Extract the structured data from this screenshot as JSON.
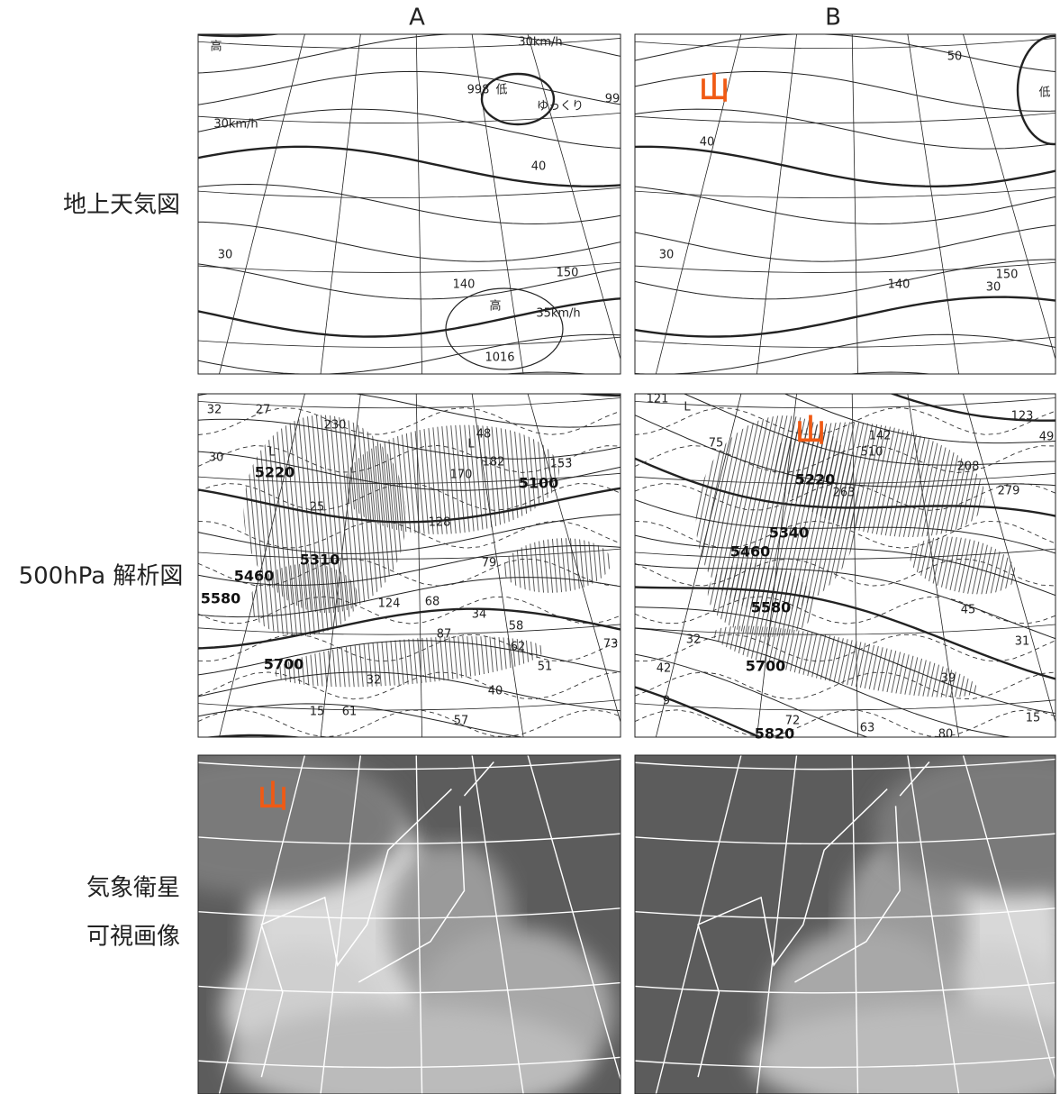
{
  "column_headers": [
    "A",
    "B"
  ],
  "row_labels": [
    "地上天気図",
    "500hPa 解析図",
    "気象衛星",
    "可視画像"
  ],
  "surface_a": [
    "高",
    "30km/h",
    "30km/h",
    "998",
    "低",
    "ゆっくり",
    "99",
    "40",
    "30",
    "140",
    "150",
    "高",
    "35km/h",
    "1016"
  ],
  "surface_b": [
    "山",
    "低",
    "50",
    "40",
    "30",
    "140",
    "150",
    "30"
  ],
  "upper_a": [
    "32",
    "27",
    "230",
    "5220",
    "L",
    "25",
    "30",
    "5310",
    "5460",
    "5580",
    "5700",
    "48",
    "L",
    "170",
    "182",
    "5100",
    "153",
    "128",
    "79",
    "68",
    "124",
    "34",
    "58",
    "62",
    "87",
    "73",
    "51",
    "32",
    "40",
    "15",
    "61",
    "57"
  ],
  "upper_b": [
    "121",
    "L",
    "75",
    "山",
    "510",
    "5220",
    "263",
    "142",
    "123",
    "49",
    "208",
    "279",
    "5340",
    "5460",
    "5580",
    "5700",
    "5820",
    "32",
    "42",
    "9",
    "39",
    "45",
    "31",
    "15",
    "72",
    "63",
    "80"
  ],
  "satellite_a": [
    "山"
  ]
}
